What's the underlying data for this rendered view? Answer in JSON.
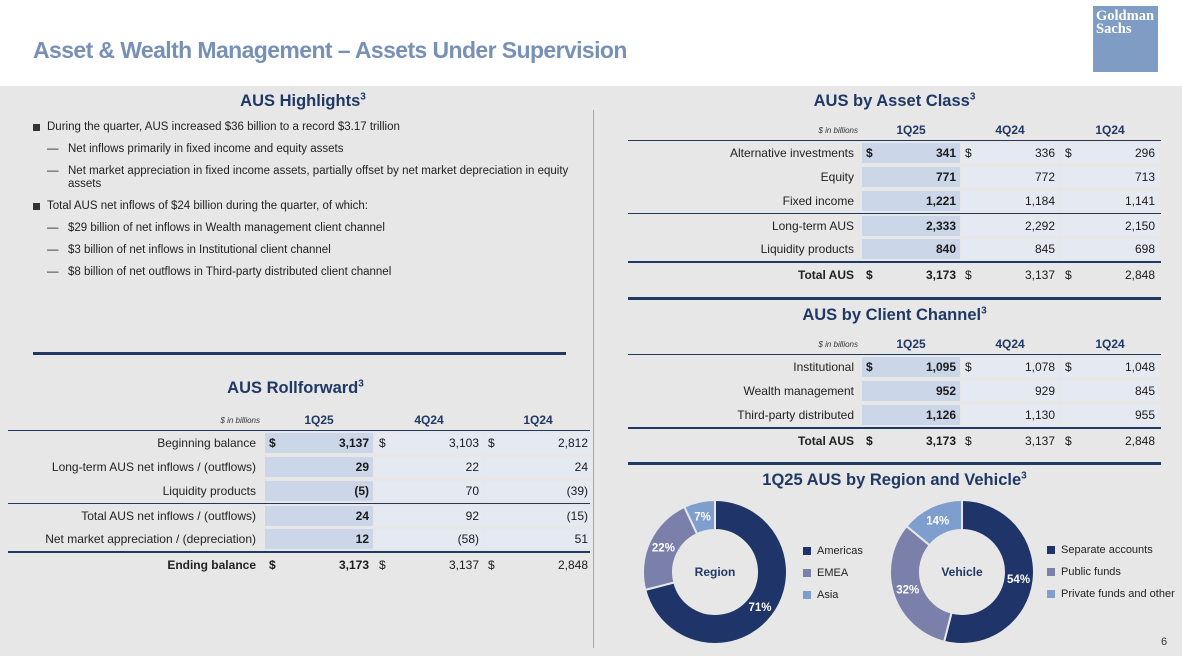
{
  "page": {
    "title": "Asset & Wealth Management – Assets Under Supervision",
    "page_number": "6"
  },
  "logo": {
    "line1": "Goldman",
    "line2": "Sachs"
  },
  "highlights": {
    "title": "AUS Highlights",
    "sup": "3",
    "bullets": [
      {
        "level": 1,
        "text": "During the quarter, AUS increased $36 billion to a record $3.17 trillion"
      },
      {
        "level": 2,
        "text": "Net inflows primarily in fixed income and equity assets"
      },
      {
        "level": 2,
        "text": "Net market appreciation in fixed income assets, partially offset by net market depreciation in equity assets"
      },
      {
        "level": 1,
        "text": "Total AUS net inflows of $24 billion during the quarter, of which:"
      },
      {
        "level": 2,
        "text": "$29 billion of net inflows in Wealth management client channel"
      },
      {
        "level": 2,
        "text": "$3 billion of net inflows in Institutional client channel"
      },
      {
        "level": 2,
        "text": "$8 billion of net outflows in Third-party distributed client channel"
      }
    ]
  },
  "rollforward": {
    "title": "AUS Rollforward",
    "sup": "3",
    "unit": "$ in billions",
    "columns": [
      "1Q25",
      "4Q24",
      "1Q24"
    ],
    "rows": [
      {
        "label": "Beginning balance",
        "dollar": true,
        "values": [
          "3,137",
          "3,103",
          "2,812"
        ]
      },
      {
        "label": "Long-term AUS net inflows / (outflows)",
        "dollar": false,
        "values": [
          "29",
          "22",
          "24"
        ]
      },
      {
        "label": "Liquidity products",
        "dollar": false,
        "values": [
          "(5)",
          "70",
          "(39)"
        ]
      },
      {
        "label": "Total AUS net inflows / (outflows)",
        "dollar": false,
        "values": [
          "24",
          "92",
          "(15)"
        ]
      },
      {
        "label": "Net market appreciation / (depreciation)",
        "dollar": false,
        "values": [
          "12",
          "(58)",
          "51"
        ]
      },
      {
        "label": "Ending balance",
        "dollar": true,
        "total": true,
        "values": [
          "3,173",
          "3,137",
          "2,848"
        ]
      }
    ]
  },
  "asset_class": {
    "title": "AUS by Asset Class",
    "sup": "3",
    "unit": "$ in billions",
    "columns": [
      "1Q25",
      "4Q24",
      "1Q24"
    ],
    "rows": [
      {
        "label": "Alternative investments",
        "dollar": true,
        "values": [
          "341",
          "336",
          "296"
        ]
      },
      {
        "label": "Equity",
        "dollar": false,
        "values": [
          "771",
          "772",
          "713"
        ]
      },
      {
        "label": "Fixed income",
        "dollar": false,
        "values": [
          "1,221",
          "1,184",
          "1,141"
        ]
      },
      {
        "label": "Long-term AUS",
        "dollar": false,
        "values": [
          "2,333",
          "2,292",
          "2,150"
        ]
      },
      {
        "label": "Liquidity products",
        "dollar": false,
        "values": [
          "840",
          "845",
          "698"
        ]
      },
      {
        "label": "Total AUS",
        "dollar": true,
        "total": true,
        "values": [
          "3,173",
          "3,137",
          "2,848"
        ]
      }
    ]
  },
  "client_channel": {
    "title": "AUS by Client Channel",
    "sup": "3",
    "unit": "$ in billions",
    "columns": [
      "1Q25",
      "4Q24",
      "1Q24"
    ],
    "rows": [
      {
        "label": "Institutional",
        "dollar": true,
        "values": [
          "1,095",
          "1,078",
          "1,048"
        ]
      },
      {
        "label": "Wealth management",
        "dollar": false,
        "values": [
          "952",
          "929",
          "845"
        ]
      },
      {
        "label": "Third-party distributed",
        "dollar": false,
        "values": [
          "1,126",
          "1,130",
          "955"
        ]
      },
      {
        "label": "Total AUS",
        "dollar": true,
        "total": true,
        "values": [
          "3,173",
          "3,137",
          "2,848"
        ]
      }
    ]
  },
  "region_vehicle": {
    "title": "1Q25 AUS by Region and Vehicle",
    "sup": "3",
    "region": {
      "center": "Region",
      "slices": [
        {
          "name": "Americas",
          "value": 71,
          "label": "71%",
          "color": "#1f3468"
        },
        {
          "name": "EMEA",
          "value": 22,
          "label": "22%",
          "color": "#7a80aa"
        },
        {
          "name": "Asia",
          "value": 7,
          "label": "7%",
          "color": "#7e9ecd"
        }
      ]
    },
    "vehicle": {
      "center": "Vehicle",
      "slices": [
        {
          "name": "Separate accounts",
          "value": 54,
          "label": "54%",
          "color": "#1f3468"
        },
        {
          "name": "Public funds",
          "value": 32,
          "label": "32%",
          "color": "#7a80aa"
        },
        {
          "name": "Private funds and other",
          "value": 14,
          "label": "14%",
          "color": "#7e9ecd"
        }
      ]
    }
  }
}
